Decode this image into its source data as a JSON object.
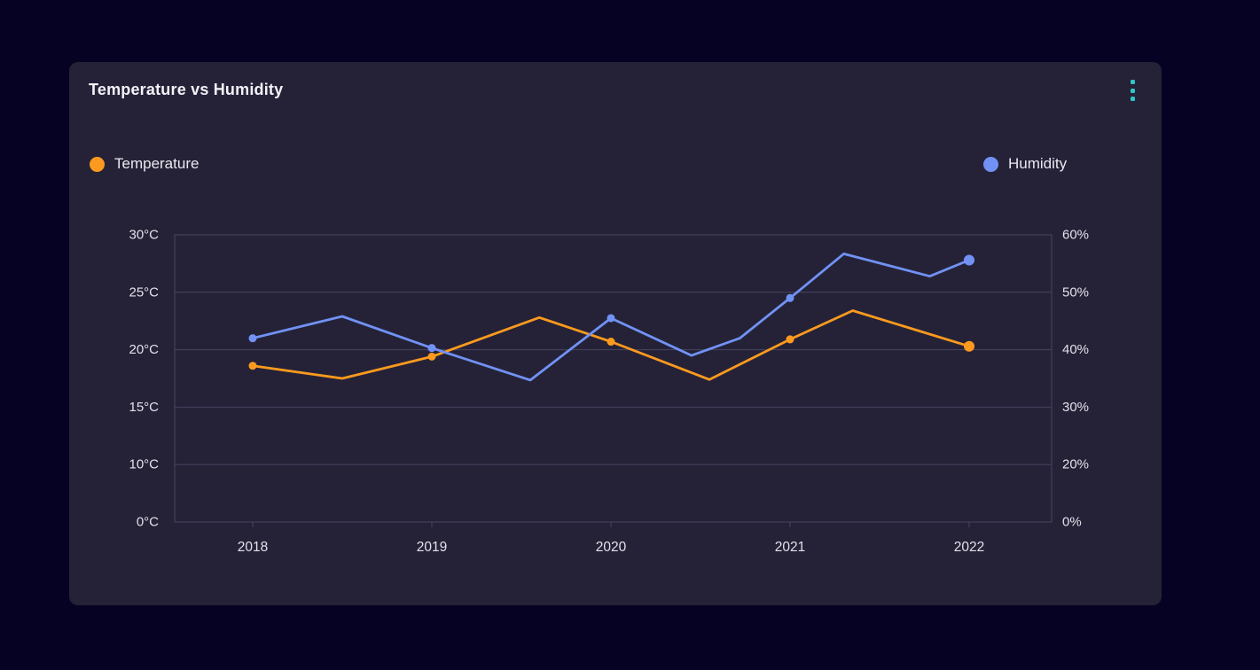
{
  "card": {
    "title": "Temperature vs Humidity",
    "menu_icon": "kebab-vertical-icon"
  },
  "colors": {
    "page_background": "#050223",
    "card_background": "#252238",
    "grid_line": "#46445f",
    "axis_text": "#e2e2ea",
    "title_text": "#f2f2f7",
    "legend_text": "#e9e9ef",
    "temperature": "#fb9a1e",
    "humidity": "#7192f4",
    "menu_dots": "#2ec6c8"
  },
  "legend": [
    {
      "label": "Temperature",
      "color": "#fb9a1e"
    },
    {
      "label": "Humidity",
      "color": "#7192f4"
    }
  ],
  "chart_data": {
    "type": "line",
    "title": "Temperature vs Humidity",
    "grid": "horizontal-only",
    "legend_position": "top",
    "x_axis": {
      "tick_labels": [
        "2018",
        "2019",
        "2020",
        "2021",
        "2022"
      ],
      "tick_years": [
        2018,
        2019,
        2020,
        2021,
        2022
      ]
    },
    "y_axis_left": {
      "unit": "°C",
      "tick_labels": [
        "0°C",
        "10°C",
        "15°C",
        "20°C",
        "25°C",
        "30°C"
      ],
      "tick_values": [
        0,
        10,
        15,
        20,
        25,
        30
      ],
      "note": "ticks equally spaced as shown"
    },
    "y_axis_right": {
      "unit": "%",
      "tick_labels": [
        "0%",
        "20%",
        "30%",
        "40%",
        "50%",
        "60%"
      ],
      "tick_values": [
        0,
        20,
        30,
        40,
        50,
        60
      ],
      "note": "ticks equally spaced as shown"
    },
    "series": [
      {
        "name": "Temperature",
        "axis": "left",
        "color": "#fb9a1e",
        "points": [
          {
            "x": 2018,
            "y": 18.6
          },
          {
            "x": 2018.5,
            "y": 17.5
          },
          {
            "x": 2019,
            "y": 19.4
          },
          {
            "x": 2019.6,
            "y": 22.8
          },
          {
            "x": 2020,
            "y": 20.7
          },
          {
            "x": 2020.55,
            "y": 17.4
          },
          {
            "x": 2021,
            "y": 20.9
          },
          {
            "x": 2021.35,
            "y": 23.4
          },
          {
            "x": 2022,
            "y": 20.3
          }
        ],
        "markers_at": [
          2018,
          2019,
          2020,
          2021,
          2022
        ]
      },
      {
        "name": "Humidity",
        "axis": "right",
        "color": "#7192f4",
        "points": [
          {
            "x": 2018,
            "y": 42
          },
          {
            "x": 2018.5,
            "y": 45.8
          },
          {
            "x": 2019,
            "y": 40.3
          },
          {
            "x": 2019.55,
            "y": 34.7
          },
          {
            "x": 2020,
            "y": 45.5
          },
          {
            "x": 2020.45,
            "y": 39
          },
          {
            "x": 2020.72,
            "y": 42
          },
          {
            "x": 2021,
            "y": 49
          },
          {
            "x": 2021.3,
            "y": 56.7
          },
          {
            "x": 2021.78,
            "y": 52.8
          },
          {
            "x": 2022,
            "y": 55.6
          }
        ],
        "markers_at": [
          2018,
          2019,
          2020,
          2021,
          2022
        ]
      }
    ]
  }
}
